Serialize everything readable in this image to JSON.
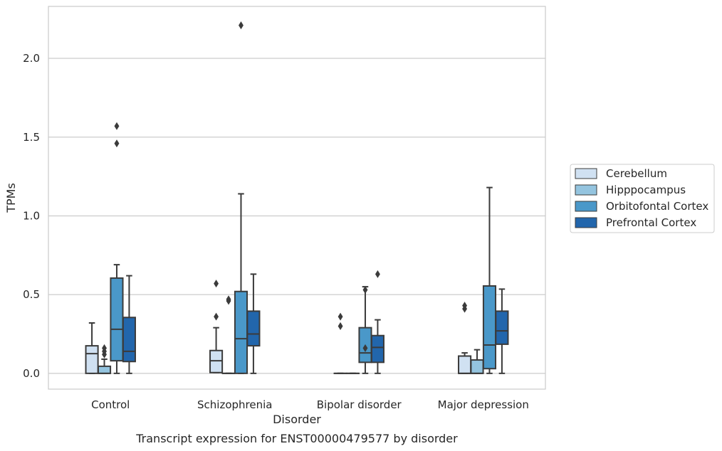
{
  "chart_data": {
    "type": "boxplot",
    "xlabel": "Disorder",
    "ylabel": "TPMs",
    "caption": "Transcript expression for ENST00000479577 by disorder",
    "categories": [
      "Control",
      "Schizophrenia",
      "Bipolar disorder",
      "Major depression"
    ],
    "ylim": [
      -0.1,
      2.33
    ],
    "yticks": [
      0.0,
      0.5,
      1.0,
      1.5,
      2.0
    ],
    "ytick_labels": [
      "0.0",
      "0.5",
      "1.0",
      "1.5",
      "2.0"
    ],
    "grid": "horizontal",
    "legend_position": "right",
    "series": [
      {
        "name": "Cerebellum",
        "color": "#d0e1f2",
        "boxes": [
          {
            "q1": 0.0,
            "median": 0.125,
            "q3": 0.175,
            "whisker_low": 0.0,
            "whisker_high": 0.32,
            "outliers": []
          },
          {
            "q1": 0.005,
            "median": 0.08,
            "q3": 0.145,
            "whisker_low": 0.005,
            "whisker_high": 0.29,
            "outliers": [
              0.36,
              0.57
            ]
          },
          {
            "q1": 0.0,
            "median": 0.0,
            "q3": 0.0,
            "whisker_low": 0.0,
            "whisker_high": 0.0,
            "outliers": [
              0.3,
              0.36
            ]
          },
          {
            "q1": 0.0,
            "median": 0.0,
            "q3": 0.11,
            "whisker_low": 0.0,
            "whisker_high": 0.13,
            "outliers": [
              0.41,
              0.43
            ]
          }
        ]
      },
      {
        "name": "Hipppocampus",
        "color": "#94c4df",
        "boxes": [
          {
            "q1": 0.0,
            "median": 0.0,
            "q3": 0.045,
            "whisker_low": 0.0,
            "whisker_high": 0.09,
            "outliers": [
              0.12,
              0.14,
              0.16
            ]
          },
          {
            "q1": 0.0,
            "median": 0.0,
            "q3": 0.0,
            "whisker_low": 0.0,
            "whisker_high": 0.0,
            "outliers": [
              0.46,
              0.47
            ]
          },
          {
            "q1": 0.0,
            "median": 0.0,
            "q3": 0.0,
            "whisker_low": 0.0,
            "whisker_high": 0.0,
            "outliers": []
          },
          {
            "q1": 0.0,
            "median": 0.0,
            "q3": 0.085,
            "whisker_low": 0.0,
            "whisker_high": 0.15,
            "outliers": []
          }
        ]
      },
      {
        "name": "Orbitofontal Cortex",
        "color": "#4a98c9",
        "boxes": [
          {
            "q1": 0.08,
            "median": 0.28,
            "q3": 0.605,
            "whisker_low": 0.0,
            "whisker_high": 0.69,
            "outliers": [
              1.46,
              1.57
            ]
          },
          {
            "q1": 0.0,
            "median": 0.22,
            "q3": 0.52,
            "whisker_low": 0.0,
            "whisker_high": 1.14,
            "outliers": [
              2.21
            ]
          },
          {
            "q1": 0.07,
            "median": 0.13,
            "q3": 0.29,
            "whisker_low": 0.0,
            "whisker_high": 0.55,
            "outliers": [
              0.16,
              0.53
            ]
          },
          {
            "q1": 0.03,
            "median": 0.18,
            "q3": 0.555,
            "whisker_low": 0.0,
            "whisker_high": 1.18,
            "outliers": []
          }
        ]
      },
      {
        "name": "Prefrontal Cortex",
        "color": "#2266ac",
        "boxes": [
          {
            "q1": 0.075,
            "median": 0.14,
            "q3": 0.355,
            "whisker_low": 0.0,
            "whisker_high": 0.62,
            "outliers": []
          },
          {
            "q1": 0.175,
            "median": 0.25,
            "q3": 0.395,
            "whisker_low": 0.0,
            "whisker_high": 0.63,
            "outliers": []
          },
          {
            "q1": 0.07,
            "median": 0.165,
            "q3": 0.24,
            "whisker_low": 0.0,
            "whisker_high": 0.34,
            "outliers": [
              0.63
            ]
          },
          {
            "q1": 0.185,
            "median": 0.27,
            "q3": 0.395,
            "whisker_low": 0.0,
            "whisker_high": 0.535,
            "outliers": []
          }
        ]
      }
    ]
  }
}
